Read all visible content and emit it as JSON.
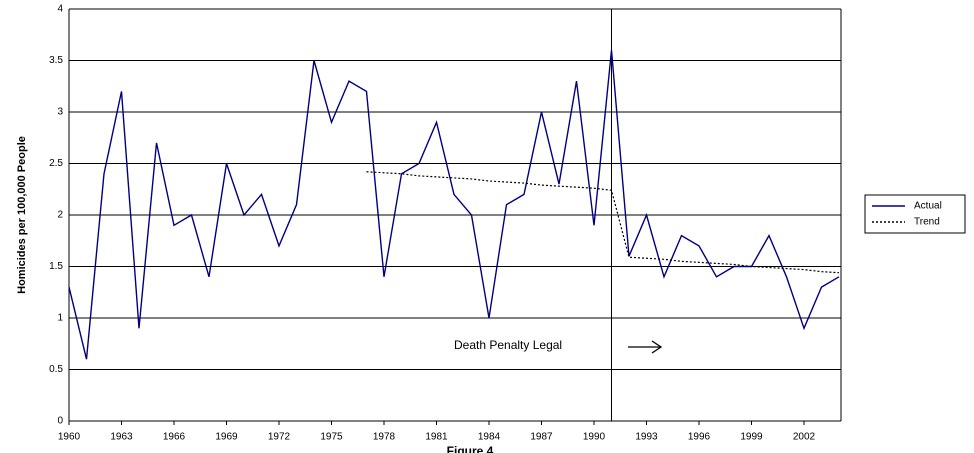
{
  "chart_data": {
    "type": "line",
    "y_label": "Homicides per 100,000 People",
    "caption": "Figure 4",
    "annotation": "Death Penalty Legal",
    "vline_x": 1991,
    "x": [
      1960,
      1961,
      1962,
      1963,
      1964,
      1965,
      1966,
      1967,
      1968,
      1969,
      1970,
      1971,
      1972,
      1973,
      1974,
      1975,
      1976,
      1977,
      1978,
      1979,
      1980,
      1981,
      1982,
      1983,
      1984,
      1985,
      1986,
      1987,
      1988,
      1989,
      1990,
      1991,
      1992,
      1993,
      1994,
      1995,
      1996,
      1997,
      1998,
      1999,
      2000,
      2001,
      2002,
      2003,
      2004
    ],
    "series": [
      {
        "name": "Actual",
        "color": "#000080",
        "style": "solid",
        "values": [
          1.3,
          0.6,
          2.4,
          3.2,
          0.9,
          2.7,
          1.9,
          2.0,
          1.4,
          2.5,
          2.0,
          2.2,
          1.7,
          2.1,
          3.5,
          2.9,
          3.3,
          3.2,
          1.4,
          2.4,
          2.5,
          2.9,
          2.2,
          2.0,
          1.0,
          2.1,
          2.2,
          3.0,
          2.3,
          3.3,
          1.9,
          3.6,
          1.6,
          2.0,
          1.4,
          1.8,
          1.7,
          1.4,
          1.5,
          1.5,
          1.8,
          1.4,
          0.9,
          1.3,
          1.4
        ]
      },
      {
        "name": "Trend",
        "color": "#000000",
        "style": "dotted",
        "values": [
          null,
          null,
          null,
          null,
          null,
          null,
          null,
          null,
          null,
          null,
          null,
          null,
          null,
          null,
          null,
          null,
          null,
          2.42,
          2.41,
          2.4,
          2.38,
          2.37,
          2.36,
          2.35,
          2.33,
          2.32,
          2.31,
          2.29,
          2.28,
          2.27,
          2.26,
          2.24,
          1.59,
          1.58,
          1.57,
          1.55,
          1.54,
          1.53,
          1.52,
          1.5,
          1.49,
          1.48,
          1.47,
          1.45,
          1.44
        ]
      }
    ],
    "xlim": [
      1960,
      2004
    ],
    "xticks": [
      1960,
      1963,
      1966,
      1969,
      1972,
      1975,
      1978,
      1981,
      1984,
      1987,
      1990,
      1993,
      1996,
      1999,
      2002
    ],
    "ylim": [
      0,
      4
    ],
    "yticks": [
      0,
      0.5,
      1,
      1.5,
      2,
      2.5,
      3,
      3.5,
      4
    ],
    "grid": true,
    "legend": "right"
  }
}
